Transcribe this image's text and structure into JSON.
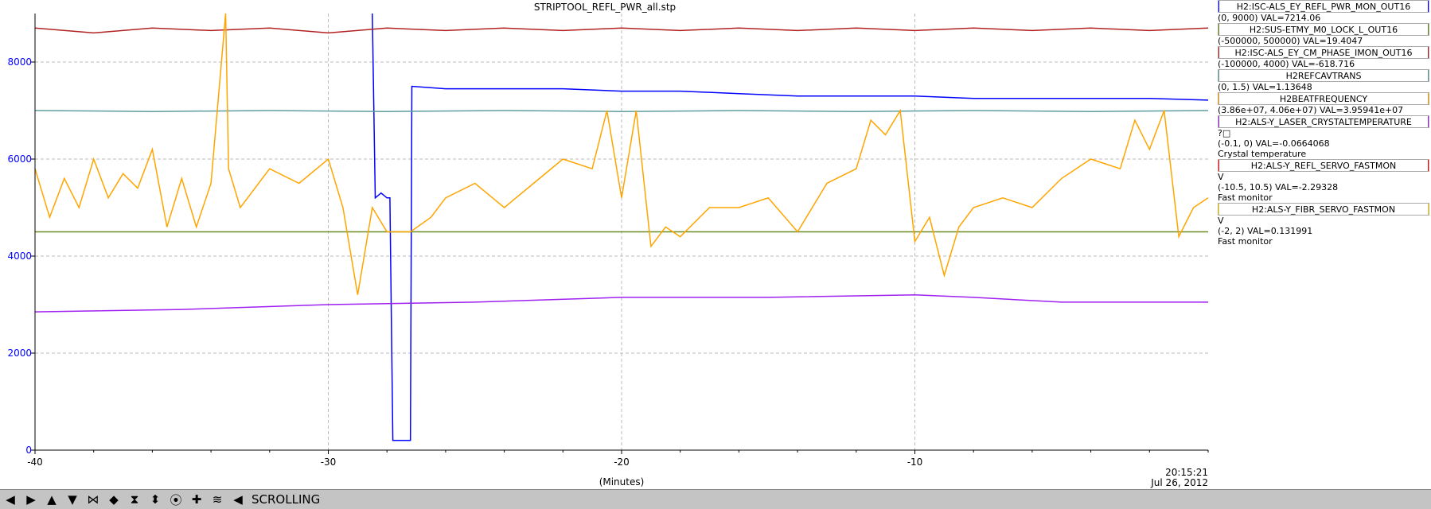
{
  "window_title": "STRIPTOOL_REFL_PWR_all.stp",
  "toolbar": {
    "buttons": [
      {
        "name": "scroll-left-button",
        "glyph": "◀"
      },
      {
        "name": "scroll-right-button",
        "glyph": "▶"
      },
      {
        "name": "scroll-up-button",
        "glyph": "▲"
      },
      {
        "name": "scroll-down-button",
        "glyph": "▼"
      },
      {
        "name": "zoom-in-x-button",
        "glyph": "⋈"
      },
      {
        "name": "zoom-out-x-button",
        "glyph": "◆"
      },
      {
        "name": "zoom-in-y-button",
        "glyph": "⧗"
      },
      {
        "name": "zoom-out-y-button",
        "glyph": "⬍"
      },
      {
        "name": "autoscale-button",
        "glyph": "⦿"
      },
      {
        "name": "reset-button",
        "glyph": "✚"
      },
      {
        "name": "refresh-button",
        "glyph": "≋"
      },
      {
        "name": "mode-button",
        "glyph": "◀"
      }
    ],
    "mode": "SCROLLING"
  },
  "chart_data": {
    "type": "line",
    "title": "STRIPTOOL_REFL_PWR_all.stp",
    "xlabel": "(Minutes)",
    "ylabel": "",
    "xlim": [
      -40,
      0
    ],
    "ylim": [
      0,
      9000
    ],
    "x_ticks": [
      "-40",
      "-30",
      "-20",
      "-10"
    ],
    "y_ticks": [
      "0",
      "2000",
      "4000",
      "6000",
      "8000"
    ],
    "x_tick_values": [
      -40,
      -30,
      -20,
      -10
    ],
    "y_tick_values": [
      0,
      2000,
      4000,
      6000,
      8000
    ],
    "time_label": "20:15:21",
    "date_label": "Jul 26, 2012",
    "grid": true,
    "legend_position": "right",
    "series": [
      {
        "name": "H2:ISC-ALS_EY_REFL_PWR_MON_OUT16",
        "color": "#0000ff",
        "range": "(0, 9000)",
        "val_label": "VAL=7214.06",
        "extra": [],
        "points": [
          [
            -40,
            null
          ],
          [
            -28.5,
            null
          ],
          [
            -28.5,
            9000
          ],
          [
            -28.4,
            5200
          ],
          [
            -28.2,
            5300
          ],
          [
            -28.0,
            5200
          ],
          [
            -27.9,
            5200
          ],
          [
            -27.8,
            200
          ],
          [
            -27.5,
            200
          ],
          [
            -27.2,
            200
          ],
          [
            -27.15,
            7500
          ],
          [
            -26,
            7450
          ],
          [
            -24,
            7450
          ],
          [
            -22,
            7450
          ],
          [
            -20,
            7400
          ],
          [
            -18,
            7400
          ],
          [
            -16,
            7350
          ],
          [
            -14,
            7300
          ],
          [
            -12,
            7300
          ],
          [
            -10,
            7300
          ],
          [
            -8,
            7250
          ],
          [
            -6,
            7250
          ],
          [
            -4,
            7250
          ],
          [
            -2,
            7250
          ],
          [
            0,
            7214
          ]
        ]
      },
      {
        "name": "H2:SUS-ETMY_M0_LOCK_L_OUT16",
        "color": "#6b8e23",
        "range": "(-500000, 500000)",
        "val_label": "VAL=19.4047",
        "extra": [],
        "points": [
          [
            -40,
            4500
          ],
          [
            0,
            4500
          ]
        ]
      },
      {
        "name": "H2:ISC-ALS_EY_CM_PHASE_IMON_OUT16",
        "color": "#b22222",
        "range": "(-100000, 4000)",
        "val_label": "VAL=-618.716",
        "extra": [],
        "points": [
          [
            -40,
            8700
          ],
          [
            -38,
            8600
          ],
          [
            -36,
            8700
          ],
          [
            -34,
            8650
          ],
          [
            -32,
            8700
          ],
          [
            -30,
            8600
          ],
          [
            -28,
            8700
          ],
          [
            -26,
            8650
          ],
          [
            -24,
            8700
          ],
          [
            -22,
            8650
          ],
          [
            -20,
            8700
          ],
          [
            -18,
            8650
          ],
          [
            -16,
            8700
          ],
          [
            -14,
            8650
          ],
          [
            -12,
            8700
          ],
          [
            -10,
            8650
          ],
          [
            -8,
            8700
          ],
          [
            -6,
            8650
          ],
          [
            -4,
            8700
          ],
          [
            -2,
            8650
          ],
          [
            0,
            8700
          ]
        ]
      },
      {
        "name": "H2REFCAVTRANS",
        "color": "#5f9ea0",
        "range": "(0, 1.5)",
        "val_label": "VAL=1.13648",
        "extra": [],
        "points": [
          [
            -40,
            7000
          ],
          [
            -36,
            6980
          ],
          [
            -32,
            7000
          ],
          [
            -28,
            6980
          ],
          [
            -24,
            7000
          ],
          [
            -20,
            6980
          ],
          [
            -16,
            7000
          ],
          [
            -12,
            6980
          ],
          [
            -8,
            7000
          ],
          [
            -4,
            6980
          ],
          [
            0,
            7000
          ]
        ]
      },
      {
        "name": "H2BEATFREQUENCY",
        "color": "#ffa500",
        "range": "(3.86e+07, 4.06e+07)",
        "val_label": "VAL=3.95941e+07",
        "extra": [],
        "points": [
          [
            -40,
            5800
          ],
          [
            -39.5,
            4800
          ],
          [
            -39,
            5600
          ],
          [
            -38.5,
            5000
          ],
          [
            -38,
            6000
          ],
          [
            -37.5,
            5200
          ],
          [
            -37,
            5700
          ],
          [
            -36.5,
            5400
          ],
          [
            -36,
            6200
          ],
          [
            -35.5,
            4600
          ],
          [
            -35,
            5600
          ],
          [
            -34.5,
            4600
          ],
          [
            -34,
            5500
          ],
          [
            -33.5,
            9000
          ],
          [
            -33.4,
            5800
          ],
          [
            -33,
            5000
          ],
          [
            -32,
            5800
          ],
          [
            -31,
            5500
          ],
          [
            -30,
            6000
          ],
          [
            -29.5,
            5000
          ],
          [
            -29,
            3200
          ],
          [
            -28.5,
            5000
          ],
          [
            -28,
            4500
          ],
          [
            -27.2,
            4500
          ],
          [
            -26.5,
            4800
          ],
          [
            -26,
            5200
          ],
          [
            -25,
            5500
          ],
          [
            -24,
            5000
          ],
          [
            -23,
            5500
          ],
          [
            -22,
            6000
          ],
          [
            -21,
            5800
          ],
          [
            -20.5,
            7000
          ],
          [
            -20,
            5200
          ],
          [
            -19.5,
            7000
          ],
          [
            -19,
            4200
          ],
          [
            -18.5,
            4600
          ],
          [
            -18,
            4400
          ],
          [
            -17,
            5000
          ],
          [
            -16,
            5000
          ],
          [
            -15,
            5200
          ],
          [
            -14,
            4500
          ],
          [
            -13,
            5500
          ],
          [
            -12,
            5800
          ],
          [
            -11.5,
            6800
          ],
          [
            -11,
            6500
          ],
          [
            -10.5,
            7000
          ],
          [
            -10,
            4300
          ],
          [
            -9.5,
            4800
          ],
          [
            -9,
            3600
          ],
          [
            -8.5,
            4600
          ],
          [
            -8,
            5000
          ],
          [
            -7,
            5200
          ],
          [
            -6,
            5000
          ],
          [
            -5,
            5600
          ],
          [
            -4,
            6000
          ],
          [
            -3,
            5800
          ],
          [
            -2.5,
            6800
          ],
          [
            -2,
            6200
          ],
          [
            -1.5,
            7000
          ],
          [
            -1,
            4400
          ],
          [
            -0.5,
            5000
          ],
          [
            0,
            5200
          ]
        ]
      },
      {
        "name": "H2:ALS-Y_LASER_CRYSTALTEMPERATURE",
        "color": "#a020f0",
        "range": "(-0.1, 0)",
        "val_label": "VAL=-0.0664068",
        "extra": [
          "?□",
          "Crystal temperature"
        ],
        "points": [
          [
            -40,
            2850
          ],
          [
            -35,
            2900
          ],
          [
            -30,
            3000
          ],
          [
            -25,
            3050
          ],
          [
            -20,
            3150
          ],
          [
            -15,
            3150
          ],
          [
            -10,
            3200
          ],
          [
            -8,
            3150
          ],
          [
            -5,
            3050
          ],
          [
            0,
            3050
          ]
        ]
      },
      {
        "name": "H2:ALS-Y_REFL_SERVO_FASTMON",
        "color": "#ff0000",
        "range": "(-10.5, 10.5)",
        "val_label": "VAL=-2.29328",
        "extra": [
          "V",
          "Fast monitor"
        ],
        "points": []
      },
      {
        "name": "H2:ALS-Y_FIBR_SERVO_FASTMON",
        "color": "#ffd700",
        "range": "(-2, 2)",
        "val_label": "VAL=0.131991",
        "extra": [
          "V",
          "Fast monitor"
        ],
        "points": []
      }
    ]
  }
}
